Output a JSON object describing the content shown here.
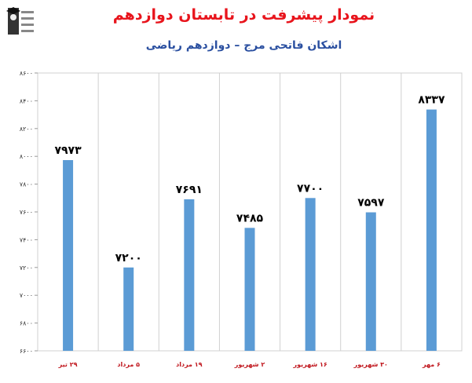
{
  "header": {
    "title": "نمودار پیشرفت در تابستان دوازدهم",
    "subtitle": "اشکان فاتحی مرج – دوازدهم ریاضی"
  },
  "colors": {
    "title": "#e8141c",
    "subtitle": "#2a4fa0",
    "bar": "#5b9bd5",
    "category": "#c0161d"
  },
  "chart_data": {
    "type": "bar",
    "categories": [
      "۲۹ تیر",
      "۵ مرداد",
      "۱۹ مرداد",
      "۲ شهریور",
      "۱۶ شهریور",
      "۳۰ شهریور",
      "۶ مهر"
    ],
    "values": [
      7973,
      7200,
      7691,
      7485,
      7700,
      7597,
      8337
    ],
    "data_labels": [
      "۷۹۷۳",
      "۷۲۰۰",
      "۷۶۹۱",
      "۷۴۸۵",
      "۷۷۰۰",
      "۷۵۹۷",
      "۸۳۳۷"
    ],
    "yticks": [
      6600,
      6800,
      7000,
      7200,
      7400,
      7600,
      7800,
      8000,
      8200,
      8400,
      8600
    ],
    "ytick_labels": [
      "۶۶۰۰",
      "۶۸۰۰",
      "۷۰۰۰",
      "۷۲۰۰",
      "۷۴۰۰",
      "۷۶۰۰",
      "۷۸۰۰",
      "۸۰۰۰",
      "۸۲۰۰",
      "۸۴۰۰",
      "۸۶۰۰"
    ],
    "ylim": [
      6600,
      8600
    ],
    "title": "نمودار پیشرفت در تابستان دوازدهم",
    "subtitle": "اشکان فاتحی مرج – دوازدهم ریاضی",
    "xlabel": "",
    "ylabel": "",
    "grid": "vertical",
    "legend": "none"
  }
}
